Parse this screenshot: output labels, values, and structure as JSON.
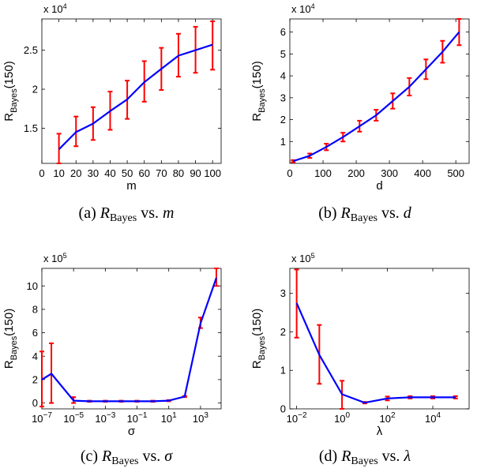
{
  "chart_data": [
    {
      "type": "line",
      "caption": {
        "label": "(a)",
        "sym": "R",
        "sub": "Bayes",
        "vs": "vs.",
        "var": "m"
      },
      "xlabel": "m",
      "ylabel": {
        "main": "R",
        "sub": "Bayes",
        "tail": "(150)"
      },
      "exponent": {
        "base": "x 10",
        "exp": "4"
      },
      "xscale": "linear",
      "xlim": [
        0,
        105
      ],
      "ylim": [
        1.05,
        2.9
      ],
      "xticks": [
        0,
        10,
        20,
        30,
        40,
        50,
        60,
        70,
        80,
        90,
        100
      ],
      "xtick_labels": [
        "0",
        "10",
        "20",
        "30",
        "40",
        "50",
        "60",
        "70",
        "80",
        "90",
        "100"
      ],
      "yticks": [
        1.5,
        2,
        2.5
      ],
      "ytick_labels": [
        "1.5",
        "2",
        "2.5"
      ],
      "x": [
        10,
        20,
        30,
        40,
        50,
        60,
        70,
        80,
        90,
        100
      ],
      "y": [
        1.23,
        1.45,
        1.56,
        1.72,
        1.87,
        2.09,
        2.26,
        2.43,
        2.5,
        2.57
      ],
      "err_low": [
        1.04,
        1.27,
        1.35,
        1.48,
        1.62,
        1.84,
        1.99,
        2.16,
        2.21,
        2.25
      ],
      "err_high": [
        1.43,
        1.65,
        1.77,
        1.97,
        2.11,
        2.36,
        2.53,
        2.71,
        2.8,
        2.87
      ],
      "line_color": "#0000ff",
      "err_color": "#ff0000"
    },
    {
      "type": "line",
      "caption": {
        "label": "(b)",
        "sym": "R",
        "sub": "Bayes",
        "vs": "vs.",
        "var": "d"
      },
      "xlabel": "d",
      "ylabel": {
        "main": "R",
        "sub": "Bayes",
        "tail": "(150)"
      },
      "exponent": {
        "base": "x 10",
        "exp": "4"
      },
      "xscale": "linear",
      "xlim": [
        0,
        540
      ],
      "ylim": [
        0,
        6.6
      ],
      "xticks": [
        0,
        100,
        200,
        300,
        400,
        500
      ],
      "xtick_labels": [
        "0",
        "100",
        "200",
        "300",
        "400",
        "500"
      ],
      "yticks": [
        1,
        2,
        3,
        4,
        5,
        6
      ],
      "ytick_labels": [
        "1",
        "2",
        "3",
        "4",
        "5",
        "6"
      ],
      "x": [
        10,
        60,
        110,
        160,
        210,
        260,
        310,
        360,
        410,
        460,
        510
      ],
      "y": [
        0.1,
        0.35,
        0.75,
        1.2,
        1.7,
        2.2,
        2.85,
        3.5,
        4.3,
        5.1,
        6.0
      ],
      "err_low": [
        0.05,
        0.25,
        0.6,
        1.0,
        1.45,
        1.95,
        2.5,
        3.1,
        3.85,
        4.6,
        5.4
      ],
      "err_high": [
        0.15,
        0.45,
        0.9,
        1.4,
        1.95,
        2.45,
        3.2,
        3.9,
        4.75,
        5.6,
        6.6
      ],
      "line_color": "#0000ff",
      "err_color": "#ff0000"
    },
    {
      "type": "line",
      "caption": {
        "label": "(c)",
        "sym": "R",
        "sub": "Bayes",
        "vs": "vs.",
        "var": "σ"
      },
      "xlabel": "σ",
      "ylabel": {
        "main": "R",
        "sub": "Bayes",
        "tail": "(150)"
      },
      "exponent": {
        "base": "x 10",
        "exp": "5"
      },
      "xscale": "log",
      "xlim": [
        -7,
        4.3
      ],
      "ylim": [
        -0.5,
        11.5
      ],
      "xticks": [
        -7,
        -5,
        -3,
        -1,
        1,
        3
      ],
      "xtick_labels": [
        {
          "b": "10",
          "e": "−7"
        },
        {
          "b": "10",
          "e": "−5"
        },
        {
          "b": "10",
          "e": "−3"
        },
        {
          "b": "10",
          "e": "−1"
        },
        {
          "b": "10",
          "e": "1"
        },
        {
          "b": "10",
          "e": "3"
        }
      ],
      "yticks": [
        0,
        2,
        4,
        6,
        8,
        10
      ],
      "ytick_labels": [
        "0",
        "2",
        "4",
        "6",
        "8",
        "10"
      ],
      "x": [
        -7,
        -6.4,
        -5,
        -4,
        -3,
        -2,
        -1,
        0,
        1,
        2,
        3,
        4
      ],
      "y": [
        2.0,
        2.5,
        0.2,
        0.15,
        0.15,
        0.15,
        0.15,
        0.15,
        0.2,
        0.55,
        6.8,
        10.7
      ],
      "err_low": [
        -0.3,
        0,
        0,
        0.1,
        0.1,
        0.1,
        0.1,
        0.1,
        0.15,
        0.5,
        6.4,
        10.0
      ],
      "err_high": [
        4.4,
        5.1,
        0.5,
        0.2,
        0.2,
        0.2,
        0.2,
        0.2,
        0.25,
        0.6,
        7.3,
        11.5
      ],
      "line_color": "#0000ff",
      "err_color": "#ff0000"
    },
    {
      "type": "line",
      "caption": {
        "label": "(d)",
        "sym": "R",
        "sub": "Bayes",
        "vs": "vs.",
        "var": "λ"
      },
      "xlabel": "λ",
      "ylabel": {
        "main": "R",
        "sub": "Bayes",
        "tail": "(150)"
      },
      "exponent": {
        "base": "x 10",
        "exp": "5"
      },
      "xscale": "log",
      "xlim": [
        -2.3,
        5.6
      ],
      "ylim": [
        0,
        3.65
      ],
      "xticks": [
        -2,
        0,
        2,
        4
      ],
      "xtick_labels": [
        {
          "b": "10",
          "e": "−2"
        },
        {
          "b": "10",
          "e": "0"
        },
        {
          "b": "10",
          "e": "2"
        },
        {
          "b": "10",
          "e": "4"
        }
      ],
      "yticks": [
        0,
        1,
        2,
        3
      ],
      "ytick_labels": [
        "0",
        "1",
        "2",
        "3"
      ],
      "x": [
        -2,
        -1,
        0,
        1,
        2,
        3,
        4,
        5
      ],
      "y": [
        2.75,
        1.4,
        0.38,
        0.16,
        0.27,
        0.3,
        0.3,
        0.3
      ],
      "err_low": [
        1.85,
        0.65,
        0,
        0.14,
        0.22,
        0.27,
        0.27,
        0.27
      ],
      "err_high": [
        3.62,
        2.18,
        0.73,
        0.18,
        0.32,
        0.33,
        0.33,
        0.33
      ],
      "line_color": "#0000ff",
      "err_color": "#ff0000"
    }
  ]
}
